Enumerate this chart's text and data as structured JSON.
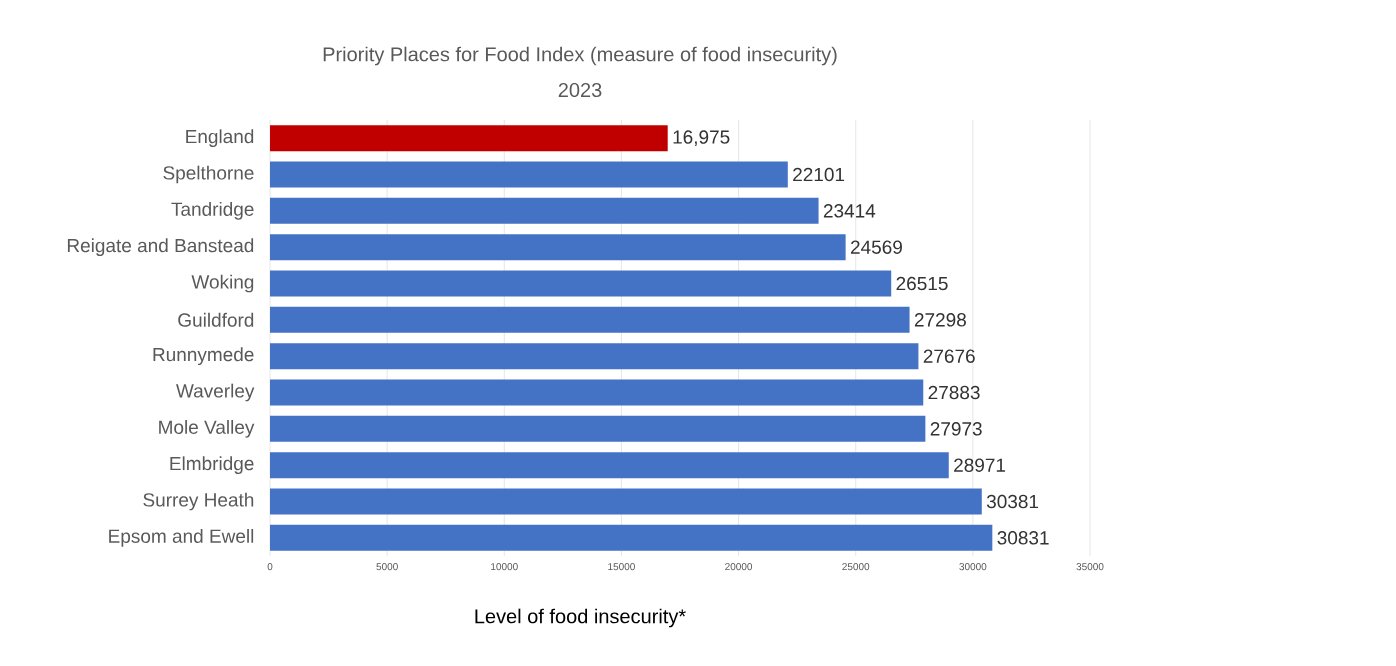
{
  "chart_data": {
    "type": "bar",
    "orientation": "horizontal",
    "title": "Priority Places for Food Index (measure of food insecurity)",
    "subtitle": "2023",
    "xlabel": "Level of food insecurity*",
    "categories": [
      "England",
      "Spelthorne",
      "Tandridge",
      "Reigate and Banstead",
      "Woking",
      "Guildford",
      "Runnymede",
      "Waverley",
      "Mole Valley",
      "Elmbridge",
      "Surrey Heath",
      "Epsom and Ewell"
    ],
    "values": [
      16975,
      22101,
      23414,
      24569,
      26515,
      27298,
      27676,
      27883,
      27973,
      28971,
      30381,
      30831
    ],
    "value_labels": [
      "16,975",
      "22101",
      "23414",
      "24569",
      "26515",
      "27298",
      "27676",
      "27883",
      "27973",
      "28971",
      "30381",
      "30831"
    ],
    "colors": [
      "#c00000",
      "#4472c4",
      "#4472c4",
      "#4472c4",
      "#4472c4",
      "#4472c4",
      "#4472c4",
      "#4472c4",
      "#4472c4",
      "#4472c4",
      "#4472c4",
      "#4472c4"
    ],
    "xlim": [
      0,
      35000
    ],
    "xticks": [
      0,
      5000,
      10000,
      15000,
      20000,
      25000,
      30000,
      35000
    ],
    "grid": "x"
  }
}
